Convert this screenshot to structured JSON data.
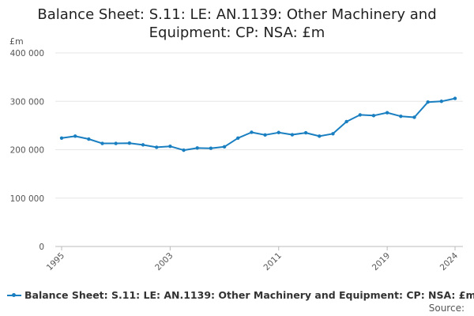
{
  "chart_data": {
    "type": "line",
    "title_lines": [
      "Balance Sheet: S.11: LE: AN.1139: Other Machinery and",
      "Equipment: CP: NSA: £m"
    ],
    "ylabel": "£m",
    "xlabel": "",
    "ylim": [
      0,
      400000
    ],
    "yticks": [
      0,
      100000,
      200000,
      300000,
      400000
    ],
    "ytick_labels": [
      "0",
      "100 000",
      "200 000",
      "300 000",
      "400 000"
    ],
    "xlim": [
      1995,
      2024
    ],
    "xticks": [
      1995,
      2003,
      2011,
      2019,
      2024
    ],
    "xtick_labels": [
      "1995",
      "2003",
      "2011",
      "2019",
      "2024"
    ],
    "grid": true,
    "legend_position": "bottom",
    "x": [
      1995,
      1996,
      1997,
      1998,
      1999,
      2000,
      2001,
      2002,
      2003,
      2004,
      2005,
      2006,
      2007,
      2008,
      2009,
      2010,
      2011,
      2012,
      2013,
      2014,
      2015,
      2016,
      2017,
      2018,
      2019,
      2020,
      2021,
      2022,
      2023,
      2024
    ],
    "series": [
      {
        "name": "Balance Sheet: S.11: LE: AN.1139: Other Machinery and Equipment: CP: NSA: £m",
        "color": "#1a7fc1",
        "values": [
          224000,
          228000,
          222000,
          213000,
          213000,
          213500,
          210000,
          205000,
          207000,
          199000,
          203500,
          203000,
          206000,
          224000,
          236000,
          230500,
          235500,
          231000,
          235000,
          228000,
          233000,
          258000,
          272000,
          270500,
          276500,
          269000,
          267000,
          298500,
          300000,
          306000
        ]
      }
    ]
  },
  "source_label": "Source:"
}
